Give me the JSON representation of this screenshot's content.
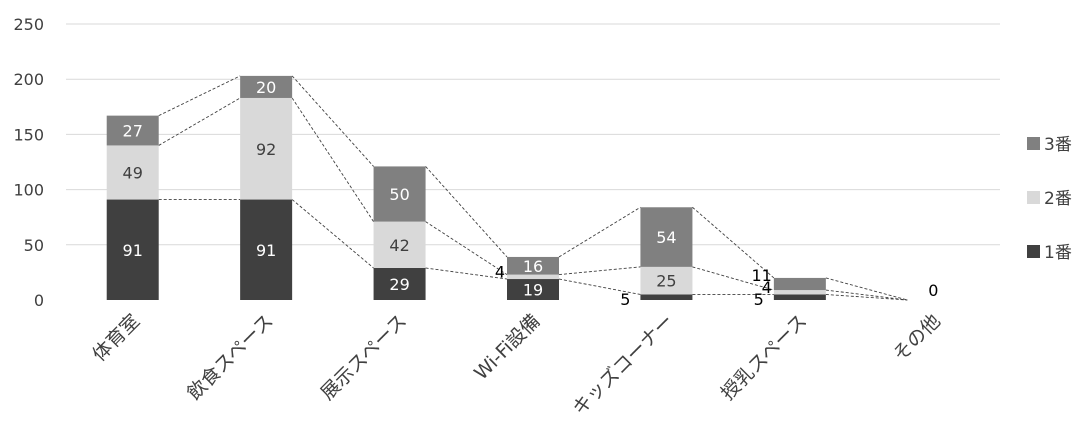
{
  "chart_data": {
    "type": "bar",
    "stacked": true,
    "categories": [
      "体育室",
      "飲食スペース",
      "展示スペース",
      "Wi-Fi設備",
      "キッズコーナー",
      "授乳スペース",
      "その他"
    ],
    "series": [
      {
        "name": "1番",
        "values": [
          91,
          91,
          29,
          19,
          5,
          5,
          0
        ],
        "labels": [
          "91",
          "91",
          "29",
          "19",
          "5",
          "5",
          "0"
        ],
        "color": "#404040"
      },
      {
        "name": "2番",
        "values": [
          49,
          92,
          42,
          4,
          25,
          4,
          0
        ],
        "labels": [
          "49",
          "92",
          "42",
          "4",
          "25",
          "4",
          ""
        ],
        "color": "#d9d9d9"
      },
      {
        "name": "3番",
        "values": [
          27,
          20,
          50,
          16,
          54,
          11,
          0
        ],
        "labels": [
          "27",
          "20",
          "50",
          "16",
          "54",
          "11",
          ""
        ],
        "color": "#808080"
      }
    ],
    "ylim": [
      0,
      250
    ],
    "yticks": [
      "0",
      "50",
      "100",
      "150",
      "200",
      "250"
    ],
    "grid": true,
    "series_lines": true,
    "legend": "right",
    "legend_order": [
      "3番",
      "2番",
      "1番"
    ]
  }
}
